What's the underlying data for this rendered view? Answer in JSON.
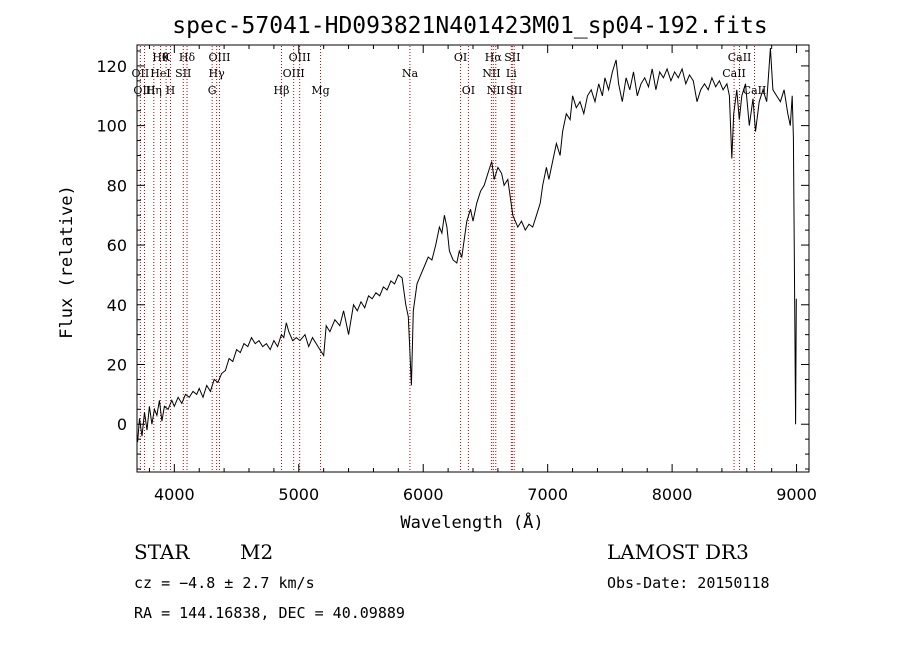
{
  "chart_data": {
    "type": "line",
    "title": "spec-57041-HD093821N401423M01_sp04-192.fits",
    "xlabel": "Wavelength (Å)",
    "ylabel": "Flux (relative)",
    "xlim": [
      3700,
      9100
    ],
    "ylim": [
      -16,
      127
    ],
    "xticks": [
      4000,
      5000,
      6000,
      7000,
      8000,
      9000
    ],
    "yticks": [
      0,
      20,
      40,
      60,
      80,
      100,
      120
    ],
    "series": [
      {
        "name": "flux",
        "points": [
          [
            3705,
            -6
          ],
          [
            3720,
            2
          ],
          [
            3740,
            -4
          ],
          [
            3760,
            4
          ],
          [
            3780,
            -2
          ],
          [
            3800,
            6
          ],
          [
            3820,
            0
          ],
          [
            3840,
            5
          ],
          [
            3860,
            3
          ],
          [
            3880,
            8
          ],
          [
            3900,
            1
          ],
          [
            3920,
            6
          ],
          [
            3950,
            5
          ],
          [
            3980,
            8
          ],
          [
            4000,
            6
          ],
          [
            4030,
            9
          ],
          [
            4060,
            7
          ],
          [
            4090,
            10
          ],
          [
            4120,
            9
          ],
          [
            4150,
            11
          ],
          [
            4180,
            10
          ],
          [
            4200,
            12
          ],
          [
            4230,
            9
          ],
          [
            4260,
            13
          ],
          [
            4290,
            11
          ],
          [
            4320,
            15
          ],
          [
            4350,
            14
          ],
          [
            4380,
            17
          ],
          [
            4410,
            18
          ],
          [
            4440,
            22
          ],
          [
            4470,
            21
          ],
          [
            4500,
            25
          ],
          [
            4530,
            24
          ],
          [
            4560,
            27
          ],
          [
            4590,
            26
          ],
          [
            4620,
            29
          ],
          [
            4650,
            27
          ],
          [
            4680,
            28
          ],
          [
            4710,
            26
          ],
          [
            4740,
            27
          ],
          [
            4770,
            25
          ],
          [
            4800,
            28
          ],
          [
            4830,
            26
          ],
          [
            4860,
            30
          ],
          [
            4880,
            29
          ],
          [
            4900,
            34
          ],
          [
            4920,
            31
          ],
          [
            4950,
            28
          ],
          [
            4980,
            29
          ],
          [
            5010,
            28
          ],
          [
            5050,
            30
          ],
          [
            5080,
            26
          ],
          [
            5110,
            29
          ],
          [
            5140,
            27
          ],
          [
            5170,
            25
          ],
          [
            5200,
            23
          ],
          [
            5220,
            33
          ],
          [
            5250,
            31
          ],
          [
            5290,
            35
          ],
          [
            5330,
            33
          ],
          [
            5360,
            38
          ],
          [
            5400,
            30
          ],
          [
            5440,
            40
          ],
          [
            5470,
            38
          ],
          [
            5500,
            41
          ],
          [
            5530,
            39
          ],
          [
            5560,
            43
          ],
          [
            5590,
            42
          ],
          [
            5620,
            44
          ],
          [
            5650,
            43
          ],
          [
            5680,
            46
          ],
          [
            5710,
            45
          ],
          [
            5740,
            48
          ],
          [
            5770,
            47
          ],
          [
            5800,
            50
          ],
          [
            5830,
            49
          ],
          [
            5860,
            40
          ],
          [
            5880,
            36
          ],
          [
            5895,
            22
          ],
          [
            5905,
            13
          ],
          [
            5920,
            38
          ],
          [
            5950,
            47
          ],
          [
            5980,
            50
          ],
          [
            6010,
            53
          ],
          [
            6040,
            56
          ],
          [
            6070,
            55
          ],
          [
            6100,
            60
          ],
          [
            6130,
            66
          ],
          [
            6150,
            64
          ],
          [
            6170,
            70
          ],
          [
            6190,
            66
          ],
          [
            6210,
            58
          ],
          [
            6240,
            55
          ],
          [
            6270,
            54
          ],
          [
            6290,
            58
          ],
          [
            6310,
            56
          ],
          [
            6330,
            62
          ],
          [
            6350,
            68
          ],
          [
            6380,
            72
          ],
          [
            6400,
            68
          ],
          [
            6430,
            74
          ],
          [
            6460,
            78
          ],
          [
            6490,
            80
          ],
          [
            6520,
            84
          ],
          [
            6550,
            88
          ],
          [
            6570,
            82
          ],
          [
            6600,
            86
          ],
          [
            6630,
            84
          ],
          [
            6650,
            80
          ],
          [
            6680,
            82
          ],
          [
            6700,
            76
          ],
          [
            6720,
            70
          ],
          [
            6740,
            68
          ],
          [
            6760,
            66
          ],
          [
            6790,
            68
          ],
          [
            6820,
            65
          ],
          [
            6850,
            67
          ],
          [
            6880,
            66
          ],
          [
            6910,
            70
          ],
          [
            6940,
            74
          ],
          [
            6960,
            80
          ],
          [
            6990,
            86
          ],
          [
            7010,
            82
          ],
          [
            7040,
            88
          ],
          [
            7070,
            94
          ],
          [
            7100,
            90
          ],
          [
            7120,
            98
          ],
          [
            7150,
            104
          ],
          [
            7180,
            102
          ],
          [
            7200,
            110
          ],
          [
            7230,
            106
          ],
          [
            7260,
            108
          ],
          [
            7290,
            104
          ],
          [
            7320,
            110
          ],
          [
            7350,
            112
          ],
          [
            7380,
            108
          ],
          [
            7410,
            114
          ],
          [
            7440,
            110
          ],
          [
            7460,
            116
          ],
          [
            7490,
            112
          ],
          [
            7520,
            118
          ],
          [
            7550,
            122
          ],
          [
            7570,
            114
          ],
          [
            7600,
            108
          ],
          [
            7630,
            116
          ],
          [
            7660,
            112
          ],
          [
            7690,
            118
          ],
          [
            7720,
            110
          ],
          [
            7750,
            114
          ],
          [
            7780,
            116
          ],
          [
            7810,
            113
          ],
          [
            7840,
            119
          ],
          [
            7870,
            112
          ],
          [
            7900,
            118
          ],
          [
            7930,
            116
          ],
          [
            7960,
            119
          ],
          [
            7990,
            115
          ],
          [
            8020,
            118
          ],
          [
            8050,
            116
          ],
          [
            8080,
            119
          ],
          [
            8110,
            114
          ],
          [
            8140,
            117
          ],
          [
            8170,
            115
          ],
          [
            8200,
            108
          ],
          [
            8230,
            112
          ],
          [
            8260,
            114
          ],
          [
            8290,
            112
          ],
          [
            8320,
            116
          ],
          [
            8350,
            113
          ],
          [
            8380,
            115
          ],
          [
            8410,
            112
          ],
          [
            8440,
            114
          ],
          [
            8460,
            110
          ],
          [
            8480,
            89
          ],
          [
            8495,
            104
          ],
          [
            8520,
            112
          ],
          [
            8540,
            102
          ],
          [
            8560,
            110
          ],
          [
            8590,
            114
          ],
          [
            8620,
            100
          ],
          [
            8650,
            109
          ],
          [
            8670,
            98
          ],
          [
            8700,
            108
          ],
          [
            8730,
            112
          ],
          [
            8760,
            108
          ],
          [
            8790,
            126
          ],
          [
            8810,
            112
          ],
          [
            8840,
            110
          ],
          [
            8870,
            108
          ],
          [
            8900,
            112
          ],
          [
            8930,
            104
          ],
          [
            8950,
            100
          ],
          [
            8965,
            110
          ],
          [
            8975,
            96
          ],
          [
            8985,
            40
          ],
          [
            8992,
            0
          ],
          [
            8998,
            42
          ]
        ]
      }
    ],
    "lines": [
      {
        "wavelength": 3727,
        "labels": [
          "OII"
        ],
        "rows": [
          1
        ]
      },
      {
        "wavelength": 3760,
        "labels": [
          "OIII"
        ],
        "rows": [
          2
        ]
      },
      {
        "wavelength": 3835,
        "labels": [
          "Hη"
        ],
        "rows": [
          2
        ]
      },
      {
        "wavelength": 3889,
        "labels": [
          "Hθ",
          "HeI"
        ],
        "rows": [
          0,
          1
        ]
      },
      {
        "wavelength": 3934,
        "labels": [
          "K"
        ],
        "rows": [
          0
        ]
      },
      {
        "wavelength": 3969,
        "labels": [
          "H"
        ],
        "rows": [
          2
        ]
      },
      {
        "wavelength": 4072,
        "labels": [
          "SII"
        ],
        "rows": [
          1
        ]
      },
      {
        "wavelength": 4102,
        "labels": [
          "Hδ"
        ],
        "rows": [
          0
        ]
      },
      {
        "wavelength": 4304,
        "labels": [
          "G"
        ],
        "rows": [
          2
        ]
      },
      {
        "wavelength": 4340,
        "labels": [
          "Hγ"
        ],
        "rows": [
          1
        ]
      },
      {
        "wavelength": 4363,
        "labels": [
          "OIII"
        ],
        "rows": [
          0
        ]
      },
      {
        "wavelength": 4861,
        "labels": [
          "Hβ"
        ],
        "rows": [
          2
        ]
      },
      {
        "wavelength": 4959,
        "labels": [
          "OIII"
        ],
        "rows": [
          1
        ]
      },
      {
        "wavelength": 5007,
        "labels": [
          "OIII"
        ],
        "rows": [
          0
        ]
      },
      {
        "wavelength": 5175,
        "labels": [
          "Mg"
        ],
        "rows": [
          2
        ]
      },
      {
        "wavelength": 5893,
        "labels": [
          "Na"
        ],
        "rows": [
          1
        ]
      },
      {
        "wavelength": 6300,
        "labels": [
          "OI"
        ],
        "rows": [
          0
        ]
      },
      {
        "wavelength": 6363,
        "labels": [
          "OI"
        ],
        "rows": [
          2
        ]
      },
      {
        "wavelength": 6548,
        "labels": [
          "NII"
        ],
        "rows": [
          1
        ]
      },
      {
        "wavelength": 6563,
        "labels": [
          "Hα"
        ],
        "rows": [
          0
        ]
      },
      {
        "wavelength": 6583,
        "labels": [
          "NII"
        ],
        "rows": [
          2
        ]
      },
      {
        "wavelength": 6708,
        "labels": [
          "Li"
        ],
        "rows": [
          1
        ]
      },
      {
        "wavelength": 6716,
        "labels": [
          "SII"
        ],
        "rows": [
          0
        ]
      },
      {
        "wavelength": 6731,
        "labels": [
          "SII"
        ],
        "rows": [
          2
        ]
      },
      {
        "wavelength": 8498,
        "labels": [
          "CaII"
        ],
        "rows": [
          1
        ]
      },
      {
        "wavelength": 8542,
        "labels": [
          "CaII"
        ],
        "rows": [
          0
        ]
      },
      {
        "wavelength": 8662,
        "labels": [
          "CaII"
        ],
        "rows": [
          2
        ]
      }
    ],
    "line_color": "#cc0000",
    "series_color": "#000000"
  },
  "info": {
    "object_class": "STAR",
    "subclass": "M2",
    "survey": "LAMOST DR3",
    "redshift": "cz = −4.8 ± 2.7 km/s",
    "obs_date": "Obs-Date: 20150118",
    "coords": "RA = 144.16838, DEC =  40.09889"
  }
}
